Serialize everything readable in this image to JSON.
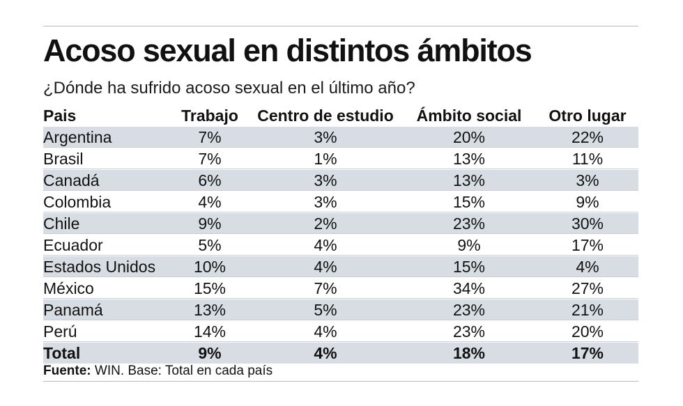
{
  "chart_data": {
    "type": "table",
    "title": "Acoso sexual en distintos ámbitos",
    "subtitle": "¿Dónde ha sufrido acoso sexual en el último año?",
    "columns": [
      "Pais",
      "Trabajo",
      "Centro de estudio",
      "Ámbito social",
      "Otro lugar"
    ],
    "rows": [
      [
        "Argentina",
        "7%",
        "3%",
        "20%",
        "22%"
      ],
      [
        "Brasil",
        "7%",
        "1%",
        "13%",
        "11%"
      ],
      [
        "Canadá",
        "6%",
        "3%",
        "13%",
        "3%"
      ],
      [
        "Colombia",
        "4%",
        "3%",
        "15%",
        "9%"
      ],
      [
        "Chile",
        "9%",
        "2%",
        "23%",
        "30%"
      ],
      [
        "Ecuador",
        "5%",
        "4%",
        "9%",
        "17%"
      ],
      [
        "Estados Unidos",
        "10%",
        "4%",
        "15%",
        "4%"
      ],
      [
        "México",
        "15%",
        "7%",
        "34%",
        "27%"
      ],
      [
        "Panamá",
        "13%",
        "5%",
        "23%",
        "21%"
      ],
      [
        "Perú",
        "14%",
        "4%",
        "23%",
        "20%"
      ]
    ],
    "total": [
      "Total",
      "9%",
      "4%",
      "18%",
      "17%"
    ],
    "source_label": "Fuente:",
    "source_text": " WIN. Base: Total en cada país"
  },
  "colors": {
    "stripe": "#d8dde3",
    "text": "#111111",
    "rule": "#b9b9b9"
  }
}
